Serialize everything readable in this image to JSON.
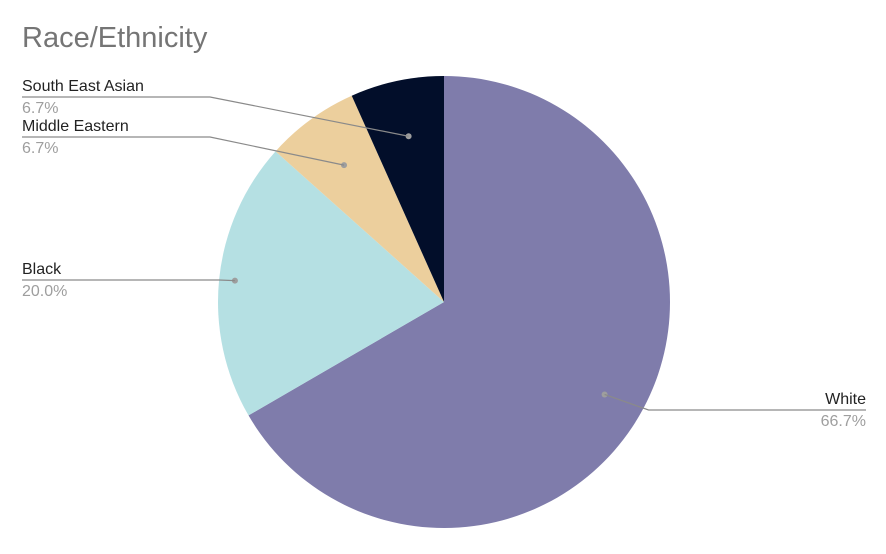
{
  "chart_data": {
    "type": "pie",
    "title": "Race/Ethnicity",
    "slices": [
      {
        "label": "White",
        "value": 66.7,
        "value_label": "66.7%",
        "color": "#7f7cab"
      },
      {
        "label": "Black",
        "value": 20.0,
        "value_label": "20.0%",
        "color": "#b5e0e3"
      },
      {
        "label": "Middle Eastern",
        "value": 6.7,
        "value_label": "6.7%",
        "color": "#eccf9d"
      },
      {
        "label": "South East Asian",
        "value": 6.7,
        "value_label": "6.7%",
        "color": "#020e2a"
      }
    ],
    "start": "top",
    "direction": "clockwise",
    "legend": "none",
    "labels": "outside-with-leader-lines"
  }
}
